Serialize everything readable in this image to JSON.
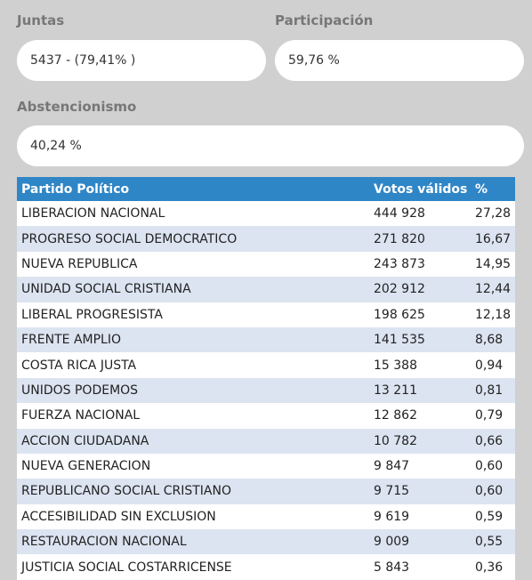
{
  "stats": {
    "juntas": {
      "label": "Juntas",
      "value": "5437 - (79,41% )"
    },
    "participacion": {
      "label": "Participación",
      "value": "59,76 %"
    },
    "abstencionismo": {
      "label": "Abstencionismo",
      "value": "40,24 %"
    }
  },
  "table": {
    "headers": {
      "party": "Partido Político",
      "votes": "Votos válidos",
      "pct": "%"
    },
    "rows": [
      {
        "party": "LIBERACION NACIONAL",
        "votes": "444 928",
        "pct": "27,28"
      },
      {
        "party": "PROGRESO SOCIAL DEMOCRATICO",
        "votes": "271 820",
        "pct": "16,67"
      },
      {
        "party": "NUEVA REPUBLICA",
        "votes": "243 873",
        "pct": "14,95"
      },
      {
        "party": "UNIDAD SOCIAL CRISTIANA",
        "votes": "202 912",
        "pct": "12,44"
      },
      {
        "party": "LIBERAL PROGRESISTA",
        "votes": "198 625",
        "pct": "12,18"
      },
      {
        "party": "FRENTE AMPLIO",
        "votes": "141 535",
        "pct": "8,68"
      },
      {
        "party": "COSTA RICA JUSTA",
        "votes": "15 388",
        "pct": "0,94"
      },
      {
        "party": "UNIDOS PODEMOS",
        "votes": "13 211",
        "pct": "0,81"
      },
      {
        "party": "FUERZA NACIONAL",
        "votes": "12 862",
        "pct": "0,79"
      },
      {
        "party": "ACCION CIUDADANA",
        "votes": "10 782",
        "pct": "0,66"
      },
      {
        "party": "NUEVA GENERACION",
        "votes": "9 847",
        "pct": "0,60"
      },
      {
        "party": "REPUBLICANO SOCIAL CRISTIANO",
        "votes": "9 715",
        "pct": "0,60"
      },
      {
        "party": "ACCESIBILIDAD SIN EXCLUSION",
        "votes": "9 619",
        "pct": "0,59"
      },
      {
        "party": "RESTAURACION NACIONAL",
        "votes": "9 009",
        "pct": "0,55"
      },
      {
        "party": "JUSTICIA SOCIAL COSTARRICENSE",
        "votes": "5 843",
        "pct": "0,36"
      }
    ]
  },
  "colors": {
    "header_bg": "#2f86c6",
    "row_alt_bg": "#dce4f1",
    "page_bg": "#d0d0d0",
    "label_text": "#777777"
  }
}
